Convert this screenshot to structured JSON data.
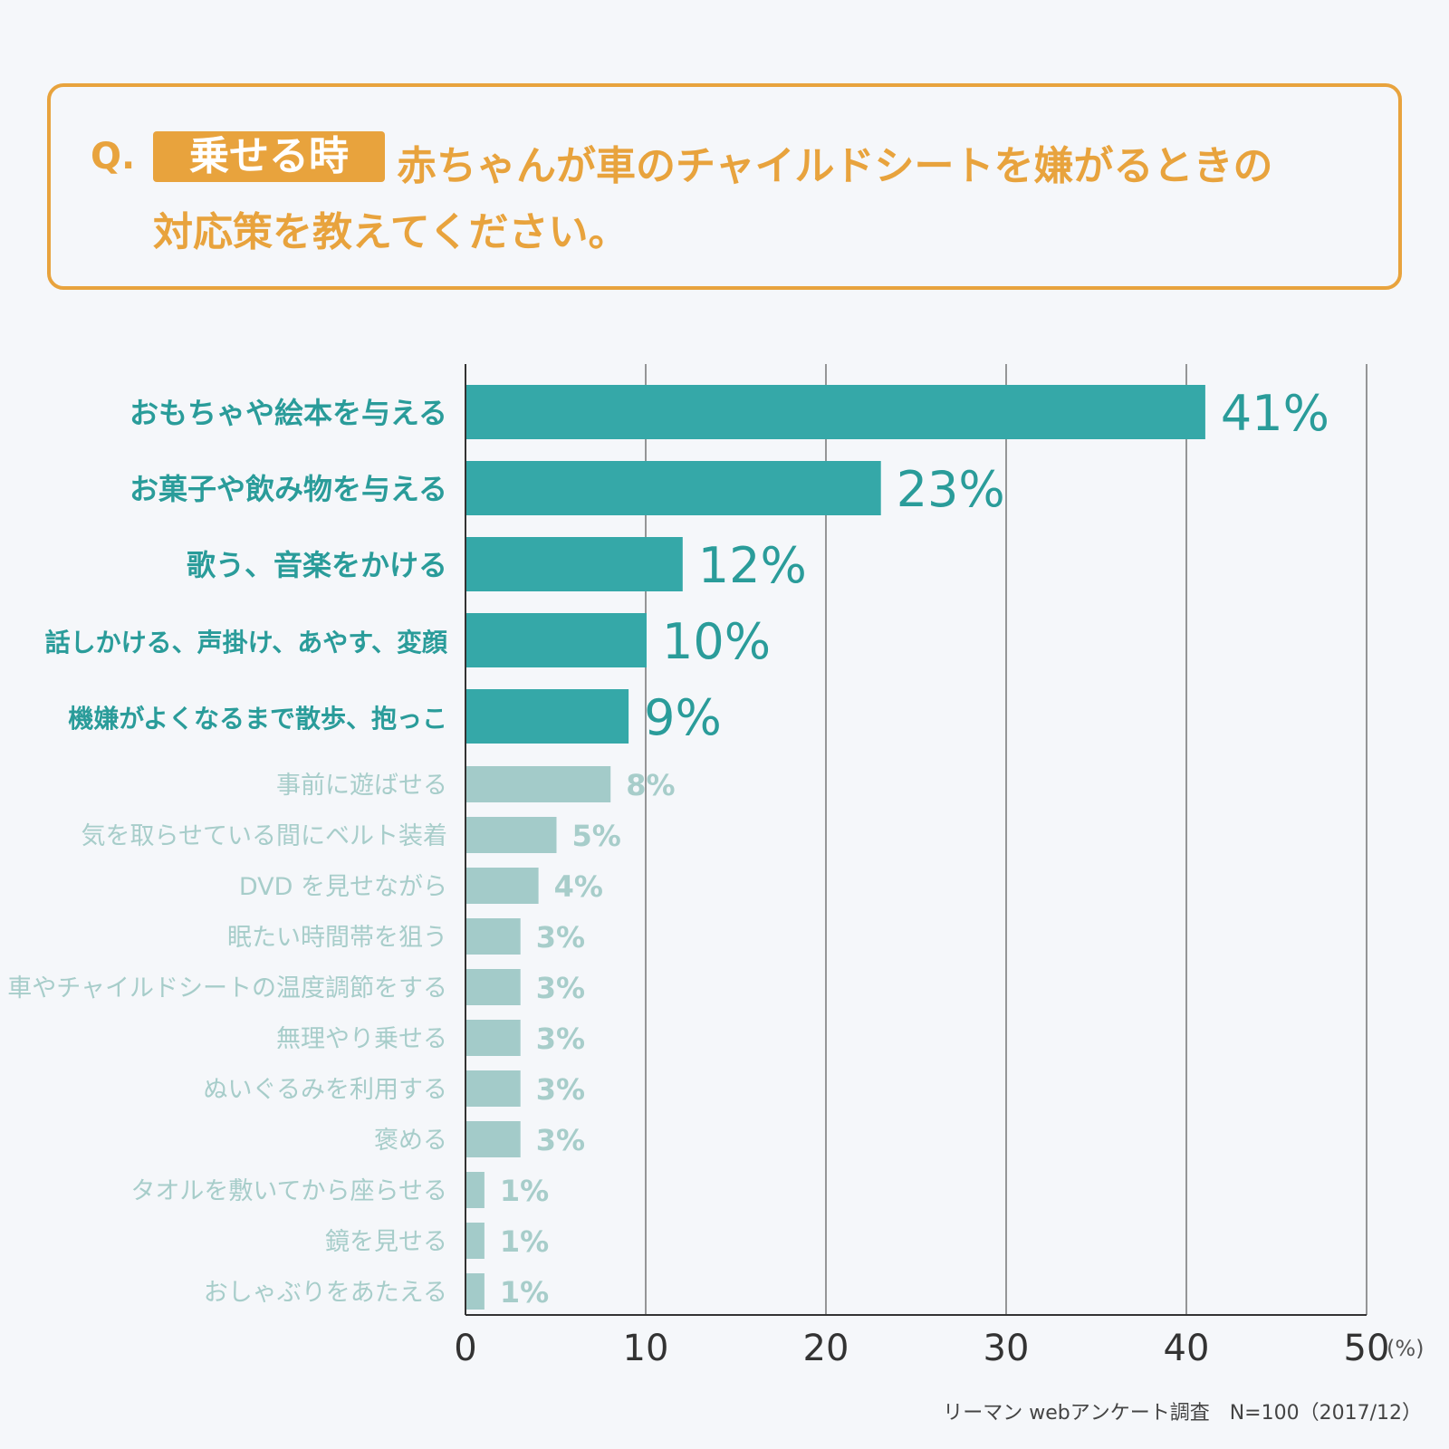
{
  "question": {
    "prefix": "Q.",
    "tag": "乗せる時",
    "line1": "赤ちゃんが車のチャイルドシートを嫌がるときの",
    "line2": "対応策を教えてください。"
  },
  "chart_data": {
    "type": "bar",
    "orientation": "horizontal",
    "categories": [
      "おもちゃや絵本を与える",
      "お菓子や飲み物を与える",
      "歌う、音楽をかける",
      "話しかける、声掛け、あやす、変顔",
      "機嫌がよくなるまで散歩、抱っこ",
      "事前に遊ばせる",
      "気を取らせている間にベルト装着",
      "DVD を見せながら",
      "眠たい時間帯を狙う",
      "車やチャイルドシートの温度調節をする",
      "無理やり乗せる",
      "ぬいぐるみを利用する",
      "褒める",
      "タオルを敷いてから座らせる",
      "鏡を見せる",
      "おしゃぶりをあたえる"
    ],
    "values": [
      41,
      23,
      12,
      10,
      9,
      8,
      5,
      4,
      3,
      3,
      3,
      3,
      3,
      1,
      1,
      1
    ],
    "value_labels": [
      "41%",
      "23%",
      "12%",
      "10%",
      "9%",
      "8%",
      "5%",
      "4%",
      "3%",
      "3%",
      "3%",
      "3%",
      "3%",
      "1%",
      "1%",
      "1%"
    ],
    "highlighted_count": 5,
    "xlim": [
      0,
      50
    ],
    "xticks": [
      "0",
      "10",
      "20",
      "30",
      "40",
      "50"
    ],
    "xunit": "(%)",
    "grid": true,
    "colors": {
      "highlight": "#35a8a8",
      "normal": "#a3cbc9",
      "label_highlight": "#2a9c9a",
      "label_normal": "#a7cdca",
      "grid": "#555555"
    }
  },
  "source": "リーマン webアンケート調査　N=100（2017/12）"
}
